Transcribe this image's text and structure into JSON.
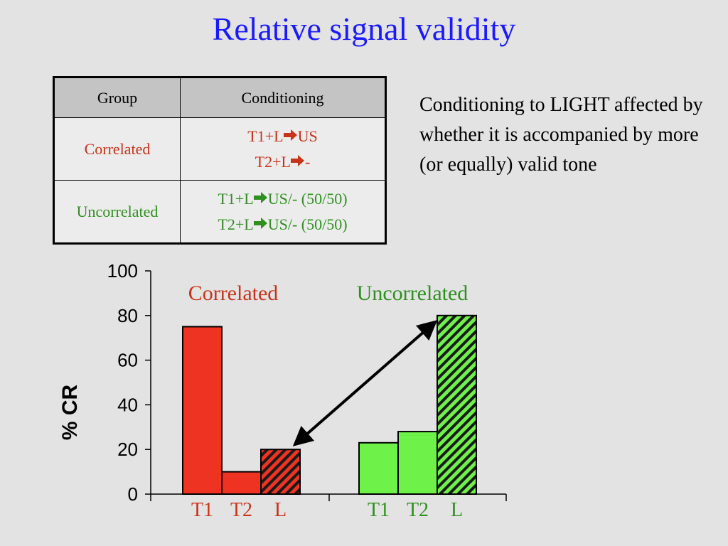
{
  "slide": {
    "title": "Relative signal validity",
    "note": "Conditioning to LIGHT affected by whether it is accompanied by more (or equally) valid tone"
  },
  "table": {
    "headers": [
      "Group",
      "Conditioning"
    ],
    "rows": [
      {
        "group": "Correlated",
        "color": "#c8331a",
        "lines": [
          {
            "pre": "T1+L",
            "post": "US"
          },
          {
            "pre": "T2+L",
            "post": "-"
          }
        ]
      },
      {
        "group": "Uncorrelated",
        "color": "#2f8f1f",
        "lines": [
          {
            "pre": "T1+L",
            "post": "US/- (50/50)"
          },
          {
            "pre": "T2+L",
            "post": "US/- (50/50)"
          }
        ]
      }
    ],
    "arrow_icon": "right-arrow-icon"
  },
  "chart_data": {
    "type": "bar",
    "title": "",
    "xlabel": "",
    "ylabel": "% CR",
    "ylim": [
      0,
      100
    ],
    "yticks": [
      0,
      20,
      40,
      60,
      80,
      100
    ],
    "groups": [
      {
        "name": "Correlated",
        "color": "#ee3322",
        "label_color": "#c8331a",
        "categories": [
          "T1",
          "T2",
          "L"
        ],
        "values": [
          75,
          10,
          20
        ],
        "hatched": [
          false,
          false,
          true
        ]
      },
      {
        "name": "Uncorrelated",
        "color": "#6ef24a",
        "label_color": "#2f8f1f",
        "categories": [
          "T1",
          "T2",
          "L"
        ],
        "values": [
          23,
          28,
          80
        ],
        "hatched": [
          false,
          false,
          true
        ]
      }
    ],
    "annotations": [
      {
        "type": "double-arrow",
        "from": "Correlated L",
        "to": "Uncorrelated L"
      }
    ]
  }
}
